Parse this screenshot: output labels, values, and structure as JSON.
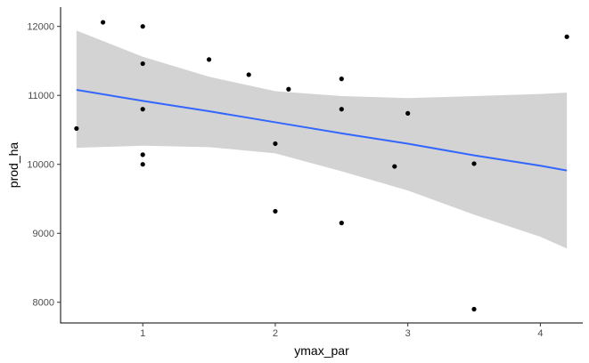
{
  "chart_data": {
    "type": "scatter",
    "xlabel": "ymax_par",
    "ylabel": "prod_ha",
    "xlim": [
      0.38,
      4.32
    ],
    "ylim": [
      7700,
      12280
    ],
    "grid": false,
    "x_ticks": [
      1,
      2,
      3,
      4
    ],
    "x_tick_labels": [
      "1",
      "2",
      "3",
      "4"
    ],
    "y_ticks": [
      8000,
      9000,
      10000,
      11000,
      12000
    ],
    "y_tick_labels": [
      "8000",
      "9000",
      "10000",
      "11000",
      "12000"
    ],
    "points": [
      {
        "x": 0.5,
        "y": 10520
      },
      {
        "x": 0.7,
        "y": 12060
      },
      {
        "x": 1.0,
        "y": 12000
      },
      {
        "x": 1.0,
        "y": 11460
      },
      {
        "x": 1.0,
        "y": 10800
      },
      {
        "x": 1.0,
        "y": 10140
      },
      {
        "x": 1.0,
        "y": 10000
      },
      {
        "x": 1.5,
        "y": 11520
      },
      {
        "x": 1.8,
        "y": 11300
      },
      {
        "x": 2.0,
        "y": 10300
      },
      {
        "x": 2.0,
        "y": 9320
      },
      {
        "x": 2.1,
        "y": 11090
      },
      {
        "x": 2.5,
        "y": 11240
      },
      {
        "x": 2.5,
        "y": 10800
      },
      {
        "x": 2.5,
        "y": 9150
      },
      {
        "x": 2.9,
        "y": 9970
      },
      {
        "x": 3.0,
        "y": 10740
      },
      {
        "x": 3.5,
        "y": 10010
      },
      {
        "x": 3.5,
        "y": 7900
      },
      {
        "x": 4.2,
        "y": 11850
      }
    ],
    "smooth": {
      "method": "linear",
      "x": [
        0.5,
        1.0,
        1.5,
        2.0,
        2.5,
        3.0,
        3.5,
        4.0,
        4.2
      ],
      "fit": [
        11080,
        10920,
        10770,
        10610,
        10450,
        10300,
        10130,
        9980,
        9910
      ],
      "lower": [
        10240,
        10270,
        10250,
        10160,
        9900,
        9620,
        9270,
        8950,
        8780
      ],
      "upper": [
        11940,
        11560,
        11270,
        11060,
        10990,
        10960,
        10990,
        11020,
        11040
      ]
    },
    "colors": {
      "points": "#000000",
      "line": "#3366FF",
      "ribbon": "#D3D3D3",
      "axis": "#000000",
      "tick_text": "#4d4d4d"
    }
  }
}
